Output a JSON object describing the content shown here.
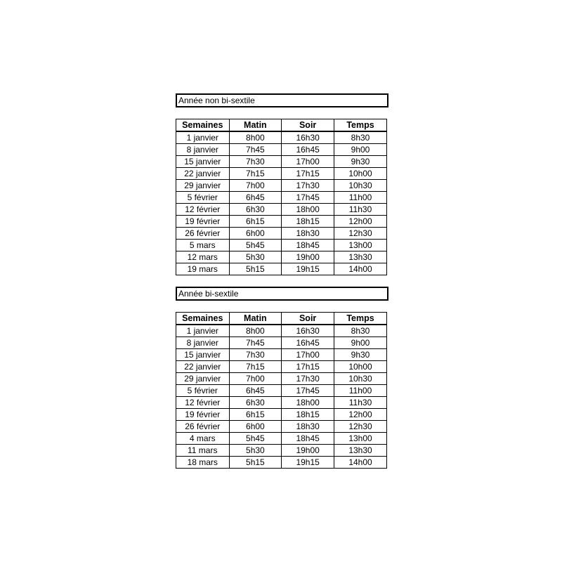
{
  "sections": [
    {
      "title": "Année non bi-sextile",
      "headers": [
        "Semaines",
        "Matin",
        "Soir",
        "Temps"
      ],
      "rows": [
        [
          "1 janvier",
          "8h00",
          "16h30",
          "8h30"
        ],
        [
          "8 janvier",
          "7h45",
          "16h45",
          "9h00"
        ],
        [
          "15 janvier",
          "7h30",
          "17h00",
          "9h30"
        ],
        [
          "22 janvier",
          "7h15",
          "17h15",
          "10h00"
        ],
        [
          "29 janvier",
          "7h00",
          "17h30",
          "10h30"
        ],
        [
          "5 février",
          "6h45",
          "17h45",
          "11h00"
        ],
        [
          "12 février",
          "6h30",
          "18h00",
          "11h30"
        ],
        [
          "19 février",
          "6h15",
          "18h15",
          "12h00"
        ],
        [
          "26 février",
          "6h00",
          "18h30",
          "12h30"
        ],
        [
          "5 mars",
          "5h45",
          "18h45",
          "13h00"
        ],
        [
          "12 mars",
          "5h30",
          "19h00",
          "13h30"
        ],
        [
          "19 mars",
          "5h15",
          "19h15",
          "14h00"
        ]
      ]
    },
    {
      "title": "Année bi-sextile",
      "headers": [
        "Semaines",
        "Matin",
        "Soir",
        "Temps"
      ],
      "rows": [
        [
          "1 janvier",
          "8h00",
          "16h30",
          "8h30"
        ],
        [
          "8 janvier",
          "7h45",
          "16h45",
          "9h00"
        ],
        [
          "15 janvier",
          "7h30",
          "17h00",
          "9h30"
        ],
        [
          "22 janvier",
          "7h15",
          "17h15",
          "10h00"
        ],
        [
          "29 janvier",
          "7h00",
          "17h30",
          "10h30"
        ],
        [
          "5 février",
          "6h45",
          "17h45",
          "11h00"
        ],
        [
          "12 février",
          "6h30",
          "18h00",
          "11h30"
        ],
        [
          "19 février",
          "6h15",
          "18h15",
          "12h00"
        ],
        [
          "26 février",
          "6h00",
          "18h30",
          "12h30"
        ],
        [
          "4 mars",
          "5h45",
          "18h45",
          "13h00"
        ],
        [
          "11 mars",
          "5h30",
          "19h00",
          "13h30"
        ],
        [
          "18 mars",
          "5h15",
          "19h15",
          "14h00"
        ]
      ]
    }
  ]
}
